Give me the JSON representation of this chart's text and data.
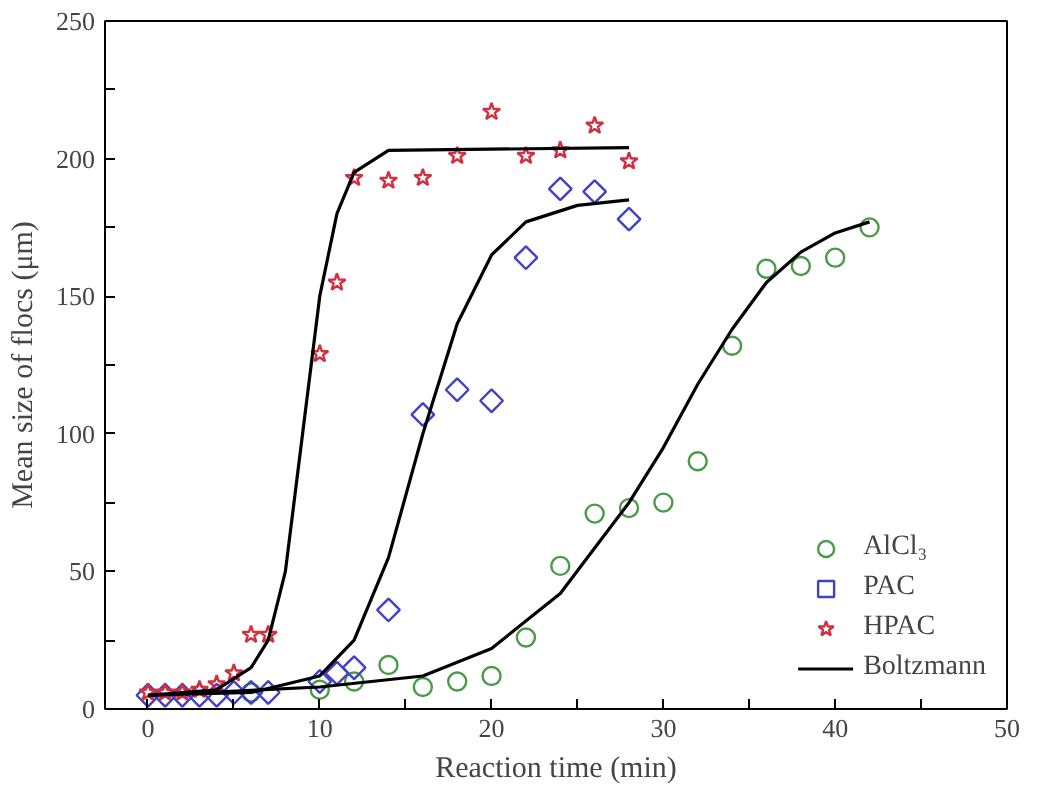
{
  "chart_data": {
    "type": "scatter",
    "xlabel": "Reaction time (min)",
    "ylabel": "Mean size of flocs (μm)",
    "xlim": [
      -2.5,
      50
    ],
    "ylim": [
      0,
      250
    ],
    "xticks": [
      0,
      {
        "value": 5,
        "label": null
      },
      10,
      {
        "value": 15,
        "label": null
      },
      20,
      {
        "value": 25,
        "label": null
      },
      30,
      {
        "value": 35,
        "label": null
      },
      40,
      {
        "value": 45,
        "label": null
      },
      50
    ],
    "yticks": [
      0,
      {
        "value": 25,
        "label": null
      },
      50,
      {
        "value": 75,
        "label": null
      },
      100,
      {
        "value": 125,
        "label": null
      },
      150,
      {
        "value": 175,
        "label": null
      },
      200,
      {
        "value": 225,
        "label": null
      },
      250
    ],
    "grid": false,
    "legend": "bottom right",
    "series": [
      {
        "name": "AlCl₃",
        "marker": "circle",
        "color": "#4a9a4a",
        "x": [
          6,
          10,
          12,
          14,
          16,
          18,
          20,
          22,
          24,
          26,
          28,
          30,
          32,
          34,
          36,
          38,
          40,
          42
        ],
        "values": [
          6,
          7,
          10,
          16,
          8,
          10,
          12,
          26,
          52,
          71,
          73,
          75,
          90,
          132,
          160,
          161,
          164,
          175
        ]
      },
      {
        "name": "PAC",
        "marker": "diamond",
        "color": "#4040c8",
        "x": [
          0,
          1,
          2,
          3,
          4,
          5,
          6,
          7,
          10,
          11,
          12,
          14,
          16,
          18,
          20,
          22,
          24,
          26,
          28
        ],
        "values": [
          5,
          5,
          5,
          5,
          5,
          6,
          6,
          6,
          10,
          13,
          15,
          36,
          107,
          116,
          112,
          164,
          189,
          188,
          178
        ]
      },
      {
        "name": "HPAC",
        "marker": "star",
        "color": "#d03040",
        "x": [
          0,
          1,
          2,
          3,
          4,
          5,
          6,
          7,
          10,
          11,
          12,
          14,
          16,
          18,
          20,
          22,
          24,
          26,
          28
        ],
        "values": [
          6,
          6,
          6,
          7,
          9,
          13,
          27,
          27,
          129,
          155,
          193,
          192,
          193,
          201,
          217,
          201,
          203,
          212,
          199
        ]
      },
      {
        "name": "Boltzmann",
        "type": "line",
        "marker": "none",
        "color": "#000000",
        "x": [
          0,
          10,
          16,
          20,
          24,
          28,
          30,
          32,
          34,
          36,
          38,
          40,
          42
        ],
        "values": [
          5,
          8,
          12,
          22,
          42,
          75,
          95,
          118,
          138,
          155,
          166,
          173,
          177
        ]
      },
      {
        "type": "line",
        "marker": "none",
        "color": "#000000",
        "x": [
          0,
          6,
          10,
          12,
          14,
          16,
          18,
          20,
          22,
          25,
          28
        ],
        "values": [
          5,
          6,
          12,
          25,
          55,
          100,
          140,
          165,
          177,
          183,
          185
        ]
      },
      {
        "type": "line",
        "marker": "none",
        "color": "#000000",
        "x": [
          0,
          4,
          6,
          7,
          8,
          9,
          10,
          11,
          12,
          14,
          28
        ],
        "values": [
          5,
          7,
          15,
          25,
          50,
          100,
          150,
          180,
          195,
          203,
          204
        ]
      }
    ]
  }
}
